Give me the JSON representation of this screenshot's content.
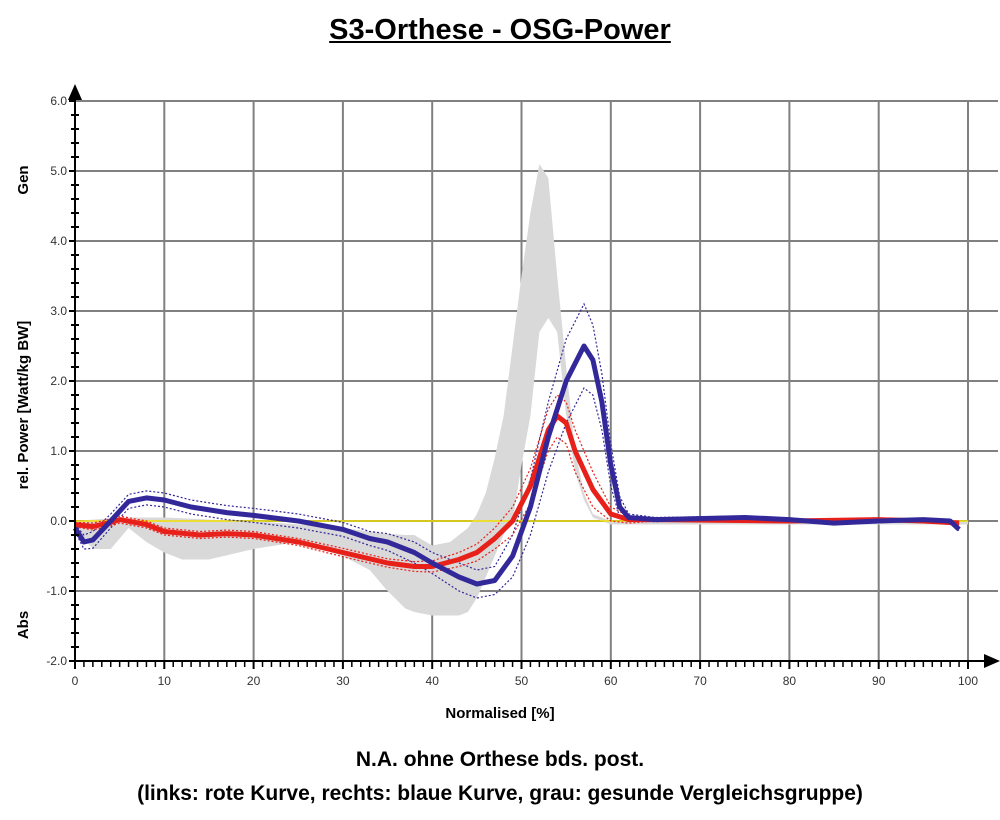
{
  "chart_data": {
    "type": "line",
    "title": "S3-Orthese - OSG-Power",
    "xlabel": "Normalised [%]",
    "ylabel": "rel. Power [Watt/kg BW]",
    "y_annotations": {
      "top": "Gen",
      "bottom": "Abs"
    },
    "caption": [
      "N.A. ohne Orthese bds. post.",
      "(links: rote Kurve, rechts: blaue Kurve, grau: gesunde Vergleichsgruppe)"
    ],
    "xlim": [
      0,
      100
    ],
    "ylim": [
      -2,
      6
    ],
    "xticks": [
      "0",
      "10",
      "20",
      "30",
      "40",
      "50",
      "60",
      "70",
      "80",
      "90",
      "100"
    ],
    "yticks": [
      "6.0",
      "5.0",
      "4.0",
      "3.0",
      "2.0",
      "1.0",
      "0.0",
      "-1.0",
      "-2.0"
    ],
    "grid": true,
    "series": [
      {
        "name": "grau: gesunde Vergleichsgruppe",
        "type": "band",
        "color": "#d9d9d9",
        "x": [
          0,
          2,
          4,
          6,
          8,
          10,
          12,
          15,
          20,
          25,
          30,
          33,
          35,
          37,
          38,
          40,
          42,
          43,
          44,
          45,
          46,
          47,
          48,
          49,
          50,
          51,
          52,
          53,
          54,
          55,
          56,
          57,
          58,
          60,
          62,
          100
        ],
        "upper": [
          0,
          0.02,
          0.04,
          0.05,
          0.05,
          0.05,
          0.04,
          0.02,
          0,
          -0.05,
          -0.1,
          -0.15,
          -0.18,
          -0.2,
          -0.2,
          -0.35,
          -0.3,
          -0.2,
          -0.1,
          0.1,
          0.4,
          0.9,
          1.5,
          2.5,
          3.5,
          4.4,
          5.1,
          4.9,
          3.5,
          2.2,
          1.0,
          0.4,
          0.1,
          0,
          0,
          0
        ],
        "lower": [
          -0.1,
          -0.4,
          -0.4,
          -0.1,
          -0.3,
          -0.45,
          -0.55,
          -0.55,
          -0.4,
          -0.3,
          -0.5,
          -0.7,
          -1.0,
          -1.25,
          -1.3,
          -1.35,
          -1.35,
          -1.35,
          -1.3,
          -1.1,
          -0.8,
          -0.5,
          -0.2,
          0,
          0.8,
          1.5,
          2.7,
          2.9,
          2.7,
          1.5,
          0.7,
          0.3,
          0.05,
          -0.05,
          -0.05,
          -0.05
        ]
      },
      {
        "name": "rechts: blaue Kurve",
        "color": "#33289a",
        "x": [
          0,
          1,
          2,
          4,
          6,
          8,
          10,
          13,
          17,
          20,
          25,
          30,
          33,
          35,
          38,
          40,
          43,
          45,
          47,
          49,
          51,
          53,
          55,
          57,
          58,
          59,
          60,
          61,
          62,
          65,
          75,
          80,
          85,
          90,
          95,
          98,
          99
        ],
        "values": [
          -0.1,
          -0.3,
          -0.27,
          0,
          0.28,
          0.33,
          0.3,
          0.2,
          0.12,
          0.08,
          0,
          -0.12,
          -0.25,
          -0.3,
          -0.45,
          -0.6,
          -0.8,
          -0.9,
          -0.85,
          -0.5,
          0.2,
          1.2,
          2.0,
          2.5,
          2.3,
          1.7,
          0.8,
          0.2,
          0.05,
          0.02,
          0.05,
          0.02,
          -0.03,
          0,
          0.02,
          0,
          -0.12
        ],
        "sd": [
          0.05,
          0.1,
          0.12,
          0.1,
          0.1,
          0.1,
          0.1,
          0.1,
          0.1,
          0.1,
          0.1,
          0.1,
          0.1,
          0.12,
          0.15,
          0.15,
          0.2,
          0.2,
          0.2,
          0.3,
          0.4,
          0.5,
          0.6,
          0.6,
          0.5,
          0.4,
          0.3,
          0.15,
          0.05,
          0.03,
          0.02,
          0.02,
          0.02,
          0.02,
          0.02,
          0.02,
          0.02
        ]
      },
      {
        "name": "links: rote Kurve",
        "color": "#e8201a",
        "x": [
          0,
          2,
          4,
          5,
          8,
          10,
          14,
          17,
          20,
          25,
          30,
          35,
          38,
          40,
          43,
          45,
          47,
          49,
          51,
          53,
          54,
          55,
          56,
          58,
          60,
          62,
          65,
          80,
          90,
          95,
          99
        ],
        "values": [
          -0.05,
          -0.08,
          -0.02,
          0.02,
          -0.05,
          -0.15,
          -0.2,
          -0.18,
          -0.2,
          -0.3,
          -0.45,
          -0.6,
          -0.65,
          -0.65,
          -0.55,
          -0.45,
          -0.25,
          0,
          0.5,
          1.3,
          1.5,
          1.4,
          1.0,
          0.45,
          0.1,
          0.02,
          0.02,
          0,
          0.02,
          0,
          -0.03
        ],
        "sd": [
          0.03,
          0.05,
          0.05,
          0.05,
          0.05,
          0.05,
          0.05,
          0.05,
          0.05,
          0.05,
          0.06,
          0.06,
          0.07,
          0.08,
          0.1,
          0.12,
          0.15,
          0.2,
          0.25,
          0.3,
          0.3,
          0.3,
          0.3,
          0.25,
          0.1,
          0.05,
          0.02,
          0.02,
          0.02,
          0.02,
          0.02
        ]
      }
    ]
  }
}
